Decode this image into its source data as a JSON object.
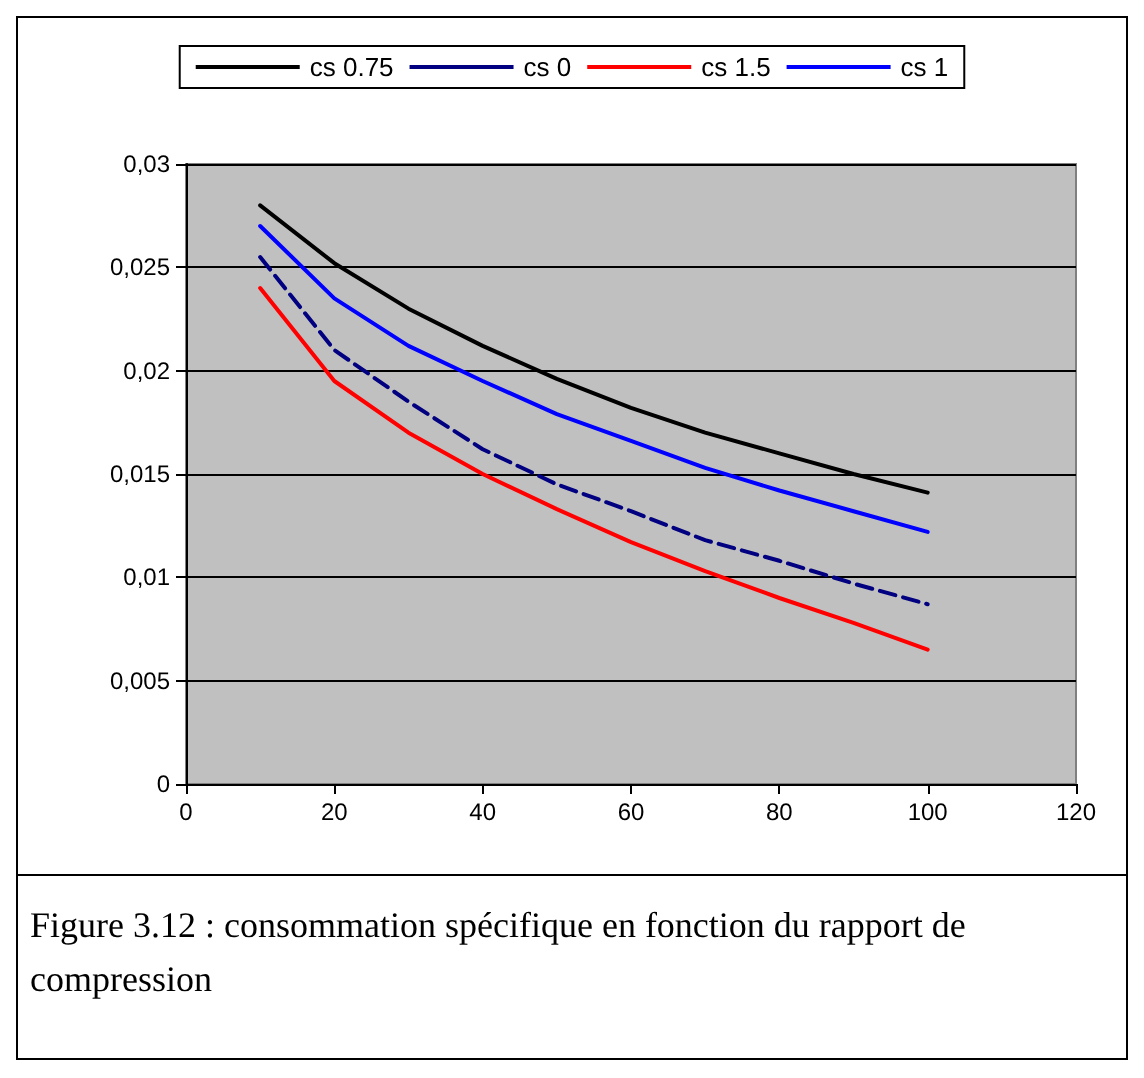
{
  "chart_data": {
    "type": "line",
    "x": [
      10,
      20,
      30,
      40,
      50,
      60,
      70,
      80,
      90,
      100
    ],
    "series": [
      {
        "name": "cs 0.75",
        "color": "#000000",
        "line_style": "solid",
        "values": [
          0.028,
          0.0252,
          0.023,
          0.0212,
          0.0196,
          0.0182,
          0.017,
          0.016,
          0.015,
          0.0141
        ]
      },
      {
        "name": "cs 0",
        "color": "#000080",
        "line_style": "dashed",
        "values": [
          0.0255,
          0.021,
          0.0185,
          0.0162,
          0.0145,
          0.0132,
          0.0118,
          0.0108,
          0.0097,
          0.0087
        ]
      },
      {
        "name": "cs 1.5",
        "color": "#ff0000",
        "line_style": "solid",
        "values": [
          0.024,
          0.0195,
          0.017,
          0.015,
          0.0133,
          0.0117,
          0.0103,
          0.009,
          0.0078,
          0.0065
        ]
      },
      {
        "name": "cs 1",
        "color": "#0000ff",
        "line_style": "solid",
        "values": [
          0.027,
          0.0235,
          0.0212,
          0.0195,
          0.0179,
          0.0166,
          0.0153,
          0.0142,
          0.0132,
          0.0122
        ]
      }
    ],
    "xlim": [
      0,
      120
    ],
    "xticks": [
      0,
      20,
      40,
      60,
      80,
      100,
      120
    ],
    "ylim": [
      0,
      0.03
    ],
    "yticks": [
      {
        "value": 0,
        "label": "0"
      },
      {
        "value": 0.005,
        "label": "0,005"
      },
      {
        "value": 0.01,
        "label": "0,01"
      },
      {
        "value": 0.015,
        "label": "0,015"
      },
      {
        "value": 0.02,
        "label": "0,02"
      },
      {
        "value": 0.025,
        "label": "0,025"
      },
      {
        "value": 0.03,
        "label": "0,03"
      }
    ],
    "grid": "y",
    "legend": "top",
    "marker": "none",
    "annotations": [
      "Figure 3.12 : consommation spécifique en fonction du rapport de compression"
    ]
  }
}
